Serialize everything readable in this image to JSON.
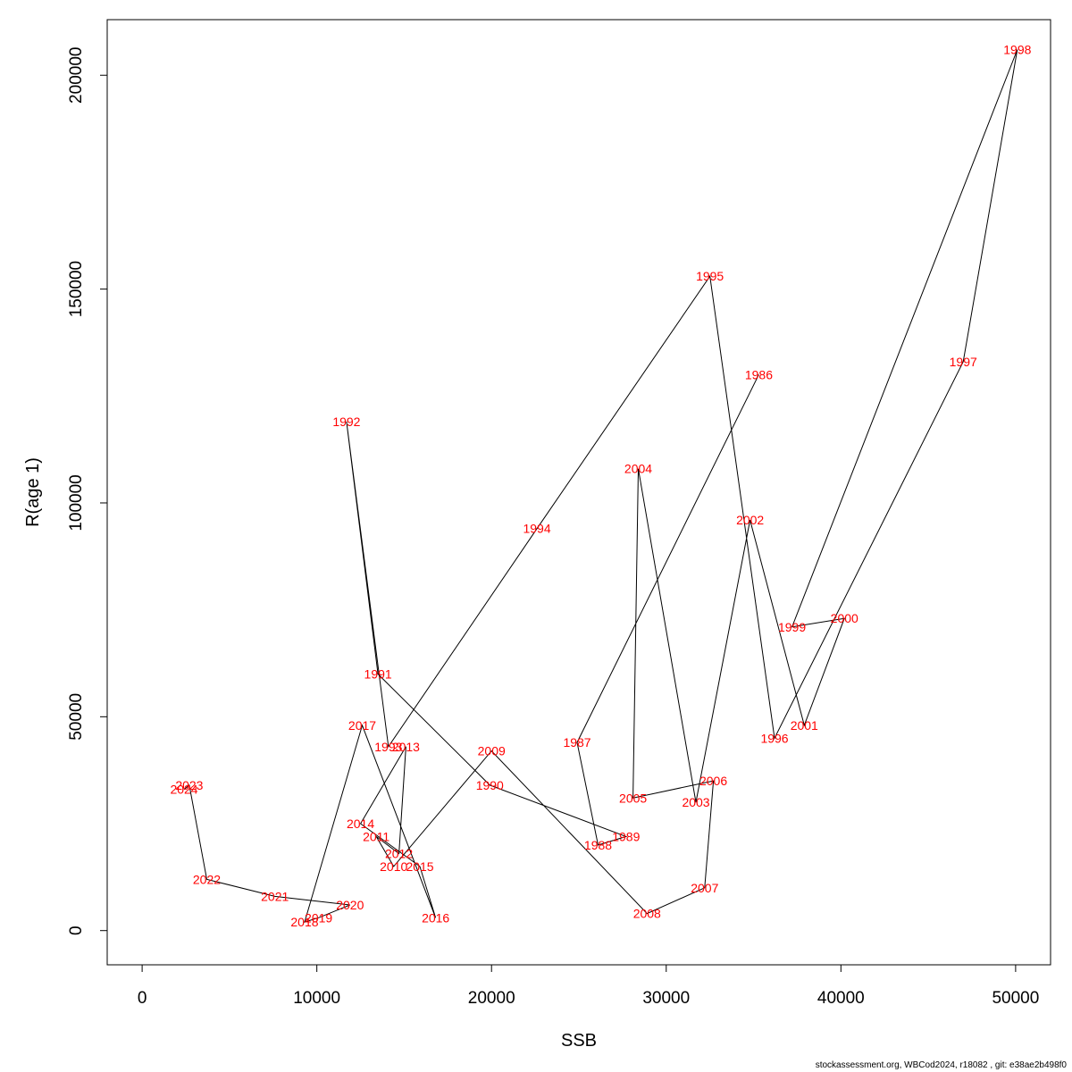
{
  "chart_data": {
    "type": "scatter",
    "connected": true,
    "line_color": "#000000",
    "label_color": "#ff0000",
    "xlabel": "SSB",
    "ylabel": "R(age 1)",
    "xlim": [
      -2000,
      52000
    ],
    "ylim": [
      -8000,
      213000
    ],
    "xticks": [
      0,
      10000,
      20000,
      30000,
      40000,
      50000
    ],
    "yticks": [
      0,
      50000,
      100000,
      150000,
      200000
    ],
    "grid": false,
    "points": [
      {
        "label": "1986",
        "x": 35300,
        "y": 130000
      },
      {
        "label": "1987",
        "x": 24900,
        "y": 44000
      },
      {
        "label": "1988",
        "x": 26100,
        "y": 20000
      },
      {
        "label": "1989",
        "x": 27700,
        "y": 22000
      },
      {
        "label": "1990",
        "x": 19900,
        "y": 34000
      },
      {
        "label": "1991",
        "x": 13500,
        "y": 60000
      },
      {
        "label": "1992",
        "x": 11700,
        "y": 119000
      },
      {
        "label": "1993",
        "x": 14100,
        "y": 43000
      },
      {
        "label": "1994",
        "x": 22600,
        "y": 94000
      },
      {
        "label": "1995",
        "x": 32500,
        "y": 153000
      },
      {
        "label": "1996",
        "x": 36200,
        "y": 45000
      },
      {
        "label": "1997",
        "x": 47000,
        "y": 133000
      },
      {
        "label": "1998",
        "x": 50100,
        "y": 206000
      },
      {
        "label": "1999",
        "x": 37200,
        "y": 71000
      },
      {
        "label": "2000",
        "x": 40200,
        "y": 73000
      },
      {
        "label": "2001",
        "x": 37900,
        "y": 48000
      },
      {
        "label": "2002",
        "x": 34800,
        "y": 96000
      },
      {
        "label": "2003",
        "x": 31700,
        "y": 30000
      },
      {
        "label": "2004",
        "x": 28400,
        "y": 108000
      },
      {
        "label": "2005",
        "x": 28100,
        "y": 31000
      },
      {
        "label": "2006",
        "x": 32700,
        "y": 35000
      },
      {
        "label": "2007",
        "x": 32200,
        "y": 10000
      },
      {
        "label": "2008",
        "x": 28900,
        "y": 4000
      },
      {
        "label": "2009",
        "x": 20000,
        "y": 42000
      },
      {
        "label": "2010",
        "x": 14400,
        "y": 15000
      },
      {
        "label": "2011",
        "x": 13400,
        "y": 22000
      },
      {
        "label": "2012",
        "x": 14700,
        "y": 18000
      },
      {
        "label": "2013",
        "x": 15100,
        "y": 43000
      },
      {
        "label": "2014",
        "x": 12500,
        "y": 25000
      },
      {
        "label": "2015",
        "x": 15900,
        "y": 15000
      },
      {
        "label": "2016",
        "x": 16800,
        "y": 3000
      },
      {
        "label": "2017",
        "x": 12600,
        "y": 48000
      },
      {
        "label": "2018",
        "x": 9300,
        "y": 2000
      },
      {
        "label": "2019",
        "x": 10100,
        "y": 3000
      },
      {
        "label": "2020",
        "x": 11900,
        "y": 6000
      },
      {
        "label": "2021",
        "x": 7600,
        "y": 8000
      },
      {
        "label": "2022",
        "x": 3700,
        "y": 12000
      },
      {
        "label": "2023",
        "x": 2700,
        "y": 34000
      },
      {
        "label": "2024",
        "x": 2400,
        "y": 33000
      }
    ]
  },
  "footer_text": "stockassessment.org, WBCod2024, r18082 , git: e38ae2b498f0"
}
